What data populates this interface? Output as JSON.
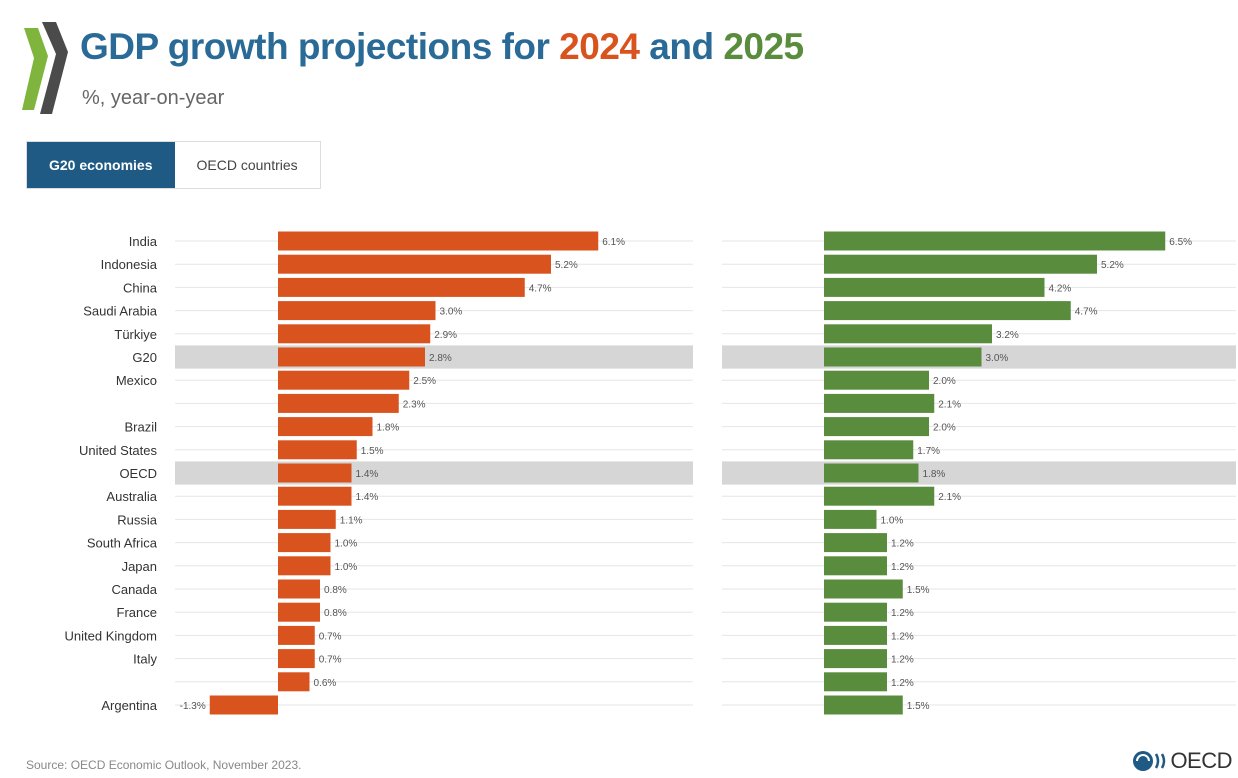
{
  "header": {
    "title_prefix": "GDP growth projections for ",
    "year1": "2024",
    "title_and": " and ",
    "year2": "2025",
    "subtitle": "%, year-on-year"
  },
  "tabs": [
    {
      "label": "G20 economies",
      "active": true
    },
    {
      "label": "OECD countries",
      "active": false
    }
  ],
  "colors": {
    "y2024": "#d9531e",
    "y2025": "#5a8c3e",
    "highlight_band": "#d6d6d6",
    "title": "#2a6a96"
  },
  "chart_data": {
    "type": "bar",
    "orientation": "horizontal",
    "categories": [
      "India",
      "Indonesia",
      "China",
      "Saudi Arabia",
      "Türkiye",
      "G20",
      "Mexico",
      "",
      "Brazil",
      "United States",
      "OECD",
      "Australia",
      "Russia",
      "South Africa",
      "Japan",
      "Canada",
      "France",
      "United Kingdom",
      "Italy",
      "",
      "Argentina"
    ],
    "highlighted": [
      "G20",
      "OECD"
    ],
    "series": [
      {
        "values": [
          6.1,
          5.2,
          4.7,
          3.0,
          2.9,
          2.8,
          2.5,
          2.3,
          1.8,
          1.5,
          1.4,
          1.4,
          1.1,
          1.0,
          1.0,
          0.8,
          0.8,
          0.7,
          0.7,
          0.6,
          -1.3
        ],
        "labels": [
          "6.1%",
          "5.2%",
          "4.7%",
          "3.0%",
          "2.9%",
          "2.8%",
          "2.5%",
          "2.3%",
          "1.8%",
          "1.5%",
          "1.4%",
          "1.4%",
          "1.1%",
          "1.0%",
          "1.0%",
          "0.8%",
          "0.8%",
          "0.7%",
          "0.7%",
          "0.6%",
          "-1.3%"
        ]
      },
      {
        "values": [
          6.5,
          5.2,
          4.2,
          4.7,
          3.2,
          3.0,
          2.0,
          2.1,
          2.0,
          1.7,
          1.8,
          2.1,
          1.0,
          1.2,
          1.2,
          1.5,
          1.2,
          1.2,
          1.2,
          1.2,
          1.5
        ],
        "labels": [
          "6.5%",
          "5.2%",
          "4.2%",
          "4.7%",
          "3.2%",
          "3.0%",
          "2.0%",
          "2.1%",
          "2.0%",
          "1.7%",
          "1.8%",
          "2.1%",
          "1.0%",
          "1.2%",
          "1.2%",
          "1.5%",
          "1.2%",
          "1.2%",
          "1.2%",
          "1.2%",
          "1.5%"
        ]
      }
    ]
  },
  "footer": {
    "source": "Source: OECD Economic Outlook, November 2023.",
    "brand": "OECD"
  }
}
